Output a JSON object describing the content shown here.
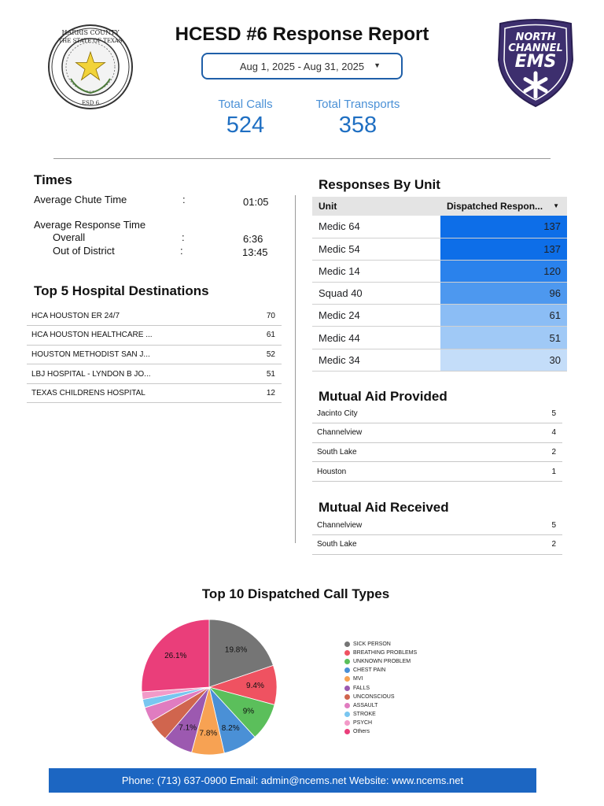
{
  "header": {
    "title": "HCESD #6 Response Report",
    "date_range": "Aug 1, 2025 - Aug 31, 2025",
    "seal": {
      "top_text": "HARRIS COUNTY",
      "ring_text": "THE STATE OF TEXAS",
      "bottom_text": "ESD 6"
    },
    "ems_logo": {
      "line1": "NORTH",
      "line2": "CHANNEL",
      "line3": "EMS"
    }
  },
  "kpis": {
    "total_calls_label": "Total Calls",
    "total_calls": "524",
    "total_transports_label": "Total Transports",
    "total_transports": "358"
  },
  "times": {
    "title": "Times",
    "chute_label": "Average Chute Time",
    "chute_value": "01:05",
    "response_label": "Average Response Time",
    "overall_label": "Overall",
    "overall_value": "6:36",
    "ood_label": "Out of District",
    "ood_value": "13:45",
    "separator": ":"
  },
  "hospitals": {
    "title": "Top 5 Hospital Destinations",
    "rows": [
      {
        "name": "HCA HOUSTON ER 24/7",
        "count": "70"
      },
      {
        "name": "HCA HOUSTON HEALTHCARE ...",
        "count": "61"
      },
      {
        "name": "HOUSTON METHODIST SAN J...",
        "count": "52"
      },
      {
        "name": "LBJ HOSPITAL - LYNDON B JO...",
        "count": "51"
      },
      {
        "name": "TEXAS CHILDRENS HOSPITAL",
        "count": "12"
      }
    ]
  },
  "units": {
    "title": "Responses By Unit",
    "col_unit": "Unit",
    "col_value": "Dispatched Respon...",
    "rows": [
      {
        "unit": "Medic 64",
        "value": 137,
        "color": "#0d6ee8"
      },
      {
        "unit": "Medic 54",
        "value": 137,
        "color": "#0d6ee8"
      },
      {
        "unit": "Medic 14",
        "value": 120,
        "color": "#2a82ec"
      },
      {
        "unit": "Squad 40",
        "value": 96,
        "color": "#4d98ef"
      },
      {
        "unit": "Medic 24",
        "value": 61,
        "color": "#8bbdf5"
      },
      {
        "unit": "Medic 44",
        "value": 51,
        "color": "#a0c9f6"
      },
      {
        "unit": "Medic 34",
        "value": 30,
        "color": "#c4ddf9"
      }
    ]
  },
  "mutual_aid_provided": {
    "title": "Mutual Aid Provided",
    "rows": [
      {
        "name": "Jacinto City",
        "count": "5"
      },
      {
        "name": "Channelview",
        "count": "4"
      },
      {
        "name": "South Lake",
        "count": "2"
      },
      {
        "name": "Houston",
        "count": "1"
      }
    ]
  },
  "mutual_aid_received": {
    "title": "Mutual Aid Received",
    "rows": [
      {
        "name": "Channelview",
        "count": "5"
      },
      {
        "name": "South Lake",
        "count": "2"
      }
    ]
  },
  "chart_data": {
    "type": "pie",
    "title": "Top 10 Dispatched Call Types",
    "legend_position": "right",
    "slices": [
      {
        "label": "SICK PERSON",
        "value": 19.8,
        "color": "#757575",
        "show_label": true
      },
      {
        "label": "BREATHING PROBLEMS",
        "value": 9.4,
        "color": "#ef5261",
        "show_label": true
      },
      {
        "label": "UNKNOWN PROBLEM",
        "value": 9.0,
        "color": "#5bbf5b",
        "show_label": true
      },
      {
        "label": "CHEST PAIN",
        "value": 8.2,
        "color": "#4a90d6",
        "show_label": true
      },
      {
        "label": "MVI",
        "value": 7.8,
        "color": "#f7a253",
        "show_label": true
      },
      {
        "label": "FALLS",
        "value": 7.1,
        "color": "#9c59b0",
        "show_label": true
      },
      {
        "label": "UNCONSCIOUS",
        "value": 5.2,
        "color": "#d0654e",
        "show_label": false
      },
      {
        "label": "ASSAULT",
        "value": 3.6,
        "color": "#e07cc0",
        "show_label": false
      },
      {
        "label": "STROKE",
        "value": 2.0,
        "color": "#79c6f0",
        "show_label": false
      },
      {
        "label": "PSYCH",
        "value": 1.8,
        "color": "#f29ac8",
        "show_label": false
      },
      {
        "label": "Others",
        "value": 26.1,
        "color": "#ea3e7a",
        "show_label": true
      }
    ]
  },
  "footer": {
    "contact": "Phone: (713) 637-0900 Email: admin@ncems.net Website: www.ncems.net"
  }
}
